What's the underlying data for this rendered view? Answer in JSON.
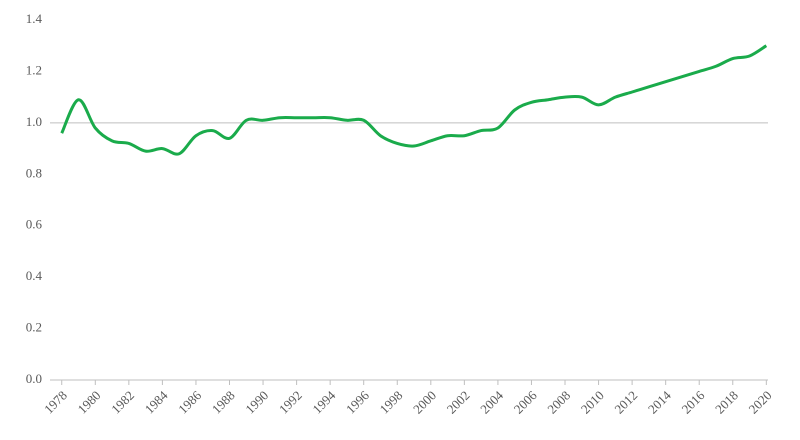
{
  "chart_data": {
    "type": "line",
    "x": [
      1978,
      1979,
      1980,
      1981,
      1982,
      1983,
      1984,
      1985,
      1986,
      1987,
      1988,
      1989,
      1990,
      1991,
      1992,
      1993,
      1994,
      1995,
      1996,
      1997,
      1998,
      1999,
      2000,
      2001,
      2002,
      2003,
      2004,
      2005,
      2006,
      2007,
      2008,
      2009,
      2010,
      2011,
      2012,
      2013,
      2014,
      2015,
      2016,
      2017,
      2018,
      2019,
      2020
    ],
    "series": [
      {
        "color": "#1aab4b",
        "values": [
          0.96,
          1.09,
          0.98,
          0.93,
          0.92,
          0.89,
          0.9,
          0.88,
          0.95,
          0.97,
          0.94,
          1.01,
          1.01,
          1.02,
          1.02,
          1.02,
          1.02,
          1.01,
          1.01,
          0.95,
          0.92,
          0.91,
          0.93,
          0.95,
          0.95,
          0.97,
          0.98,
          1.05,
          1.08,
          1.09,
          1.1,
          1.1,
          1.07,
          1.1,
          1.12,
          1.14,
          1.16,
          1.18,
          1.2,
          1.22,
          1.25,
          1.26,
          1.3
        ]
      }
    ],
    "xlim": [
      1977.3,
      2020.1
    ],
    "xticks": [
      1978,
      1980,
      1982,
      1984,
      1986,
      1988,
      1990,
      1992,
      1994,
      1996,
      1998,
      2000,
      2002,
      2004,
      2006,
      2008,
      2010,
      2012,
      2014,
      2016,
      2018,
      2020
    ],
    "ylim": [
      0,
      1.4
    ],
    "yticks": [
      {
        "value": 0,
        "label": "0.0"
      },
      0.2,
      0.4,
      0.6,
      0.8,
      {
        "value": 1,
        "label": "1.0"
      },
      1.2,
      1.4
    ],
    "reference_line": 1
  }
}
